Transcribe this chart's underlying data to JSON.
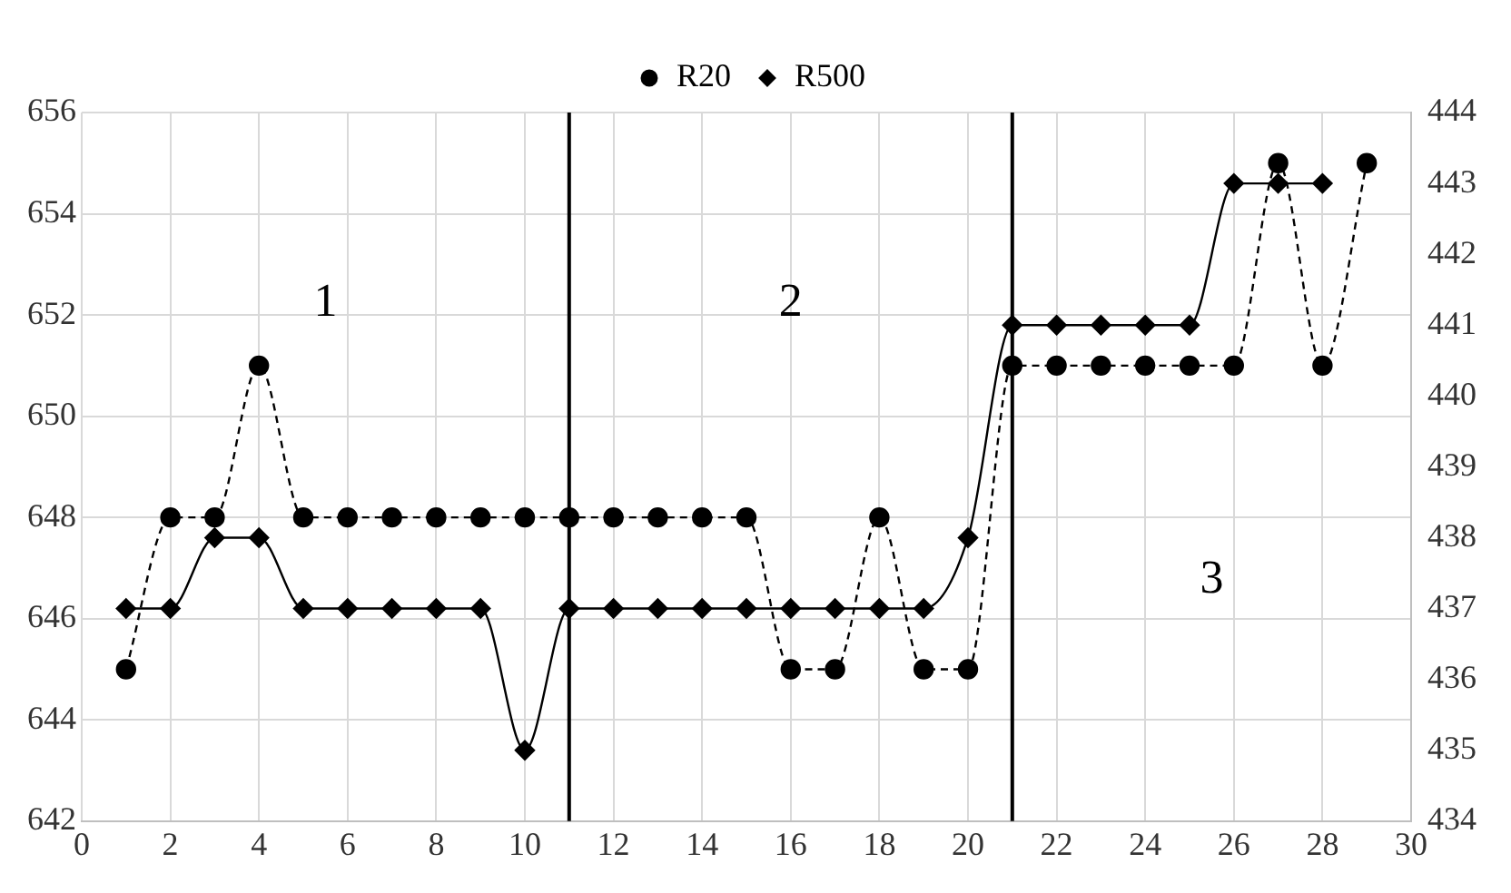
{
  "chart_data": {
    "type": "line",
    "x": [
      1,
      2,
      3,
      4,
      5,
      6,
      7,
      8,
      9,
      10,
      11,
      12,
      13,
      14,
      15,
      16,
      17,
      18,
      19,
      20,
      21,
      22,
      23,
      24,
      25,
      26,
      27,
      28,
      29
    ],
    "series": [
      {
        "name": "R20",
        "color": "#000000",
        "marker": "circle",
        "line_style": "dashed",
        "values": [
          645,
          648,
          648,
          651,
          648,
          648,
          648,
          648,
          648,
          648,
          648,
          648,
          648,
          648,
          648,
          645,
          645,
          648,
          645,
          645,
          651,
          651,
          651,
          651,
          651,
          651,
          655,
          651,
          655
        ]
      },
      {
        "name": "R500",
        "color": "#000000",
        "marker": "diamond",
        "line_style": "solid",
        "axis": "y2",
        "values": [
          437,
          437,
          438,
          438,
          437,
          437,
          437,
          437,
          437,
          435,
          437,
          437,
          437,
          437,
          437,
          437,
          437,
          437,
          437,
          438,
          441,
          441,
          441,
          441,
          441,
          443,
          443,
          443,
          null
        ]
      }
    ],
    "xlim": [
      0,
      30
    ],
    "xticks": [
      0,
      2,
      4,
      6,
      8,
      10,
      12,
      14,
      16,
      18,
      20,
      22,
      24,
      26,
      28,
      30
    ],
    "ylim": [
      642,
      656
    ],
    "yticks": [
      642,
      644,
      646,
      648,
      650,
      652,
      654,
      656
    ],
    "y2lim": [
      434,
      444
    ],
    "y2ticks": [
      434,
      435,
      436,
      437,
      438,
      439,
      440,
      441,
      442,
      443,
      444
    ],
    "ref_lines": [
      {
        "axis": "x",
        "value": 11,
        "color": "#000000"
      },
      {
        "axis": "x",
        "value": 21,
        "color": "#000000"
      }
    ],
    "annotations": [
      "1",
      "2",
      "3"
    ],
    "grid": true,
    "legend": "top"
  }
}
